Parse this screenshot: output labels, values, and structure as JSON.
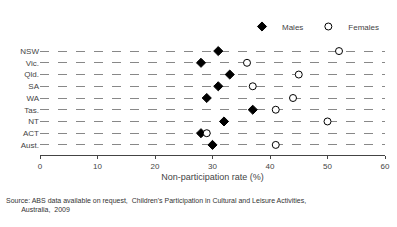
{
  "chart_data": {
    "type": "dot",
    "categories": [
      "NSW",
      "Vic.",
      "Qld.",
      "SA",
      "WA",
      "Tas.",
      "NT",
      "ACT",
      "Aust."
    ],
    "series": [
      {
        "name": "Males",
        "color": "#000000",
        "marker": "diamond",
        "values": [
          31,
          28,
          33,
          31,
          29,
          37,
          32,
          28,
          30
        ]
      },
      {
        "name": "Females",
        "color": "#ffffff",
        "marker": "circle",
        "values": [
          52,
          36,
          45,
          37,
          44,
          41,
          50,
          29,
          41
        ]
      }
    ],
    "xlabel": "Non-participation rate (%)",
    "xlim": [
      0,
      60
    ],
    "xticks": [
      0,
      10,
      20,
      30,
      40,
      50,
      60
    ],
    "grid": true,
    "legend": "top right",
    "annotations": [
      "Source: ABS data available on request,  Children's Participation in Cultural and Leisure Activities,",
      "        Australia,  2009"
    ]
  }
}
